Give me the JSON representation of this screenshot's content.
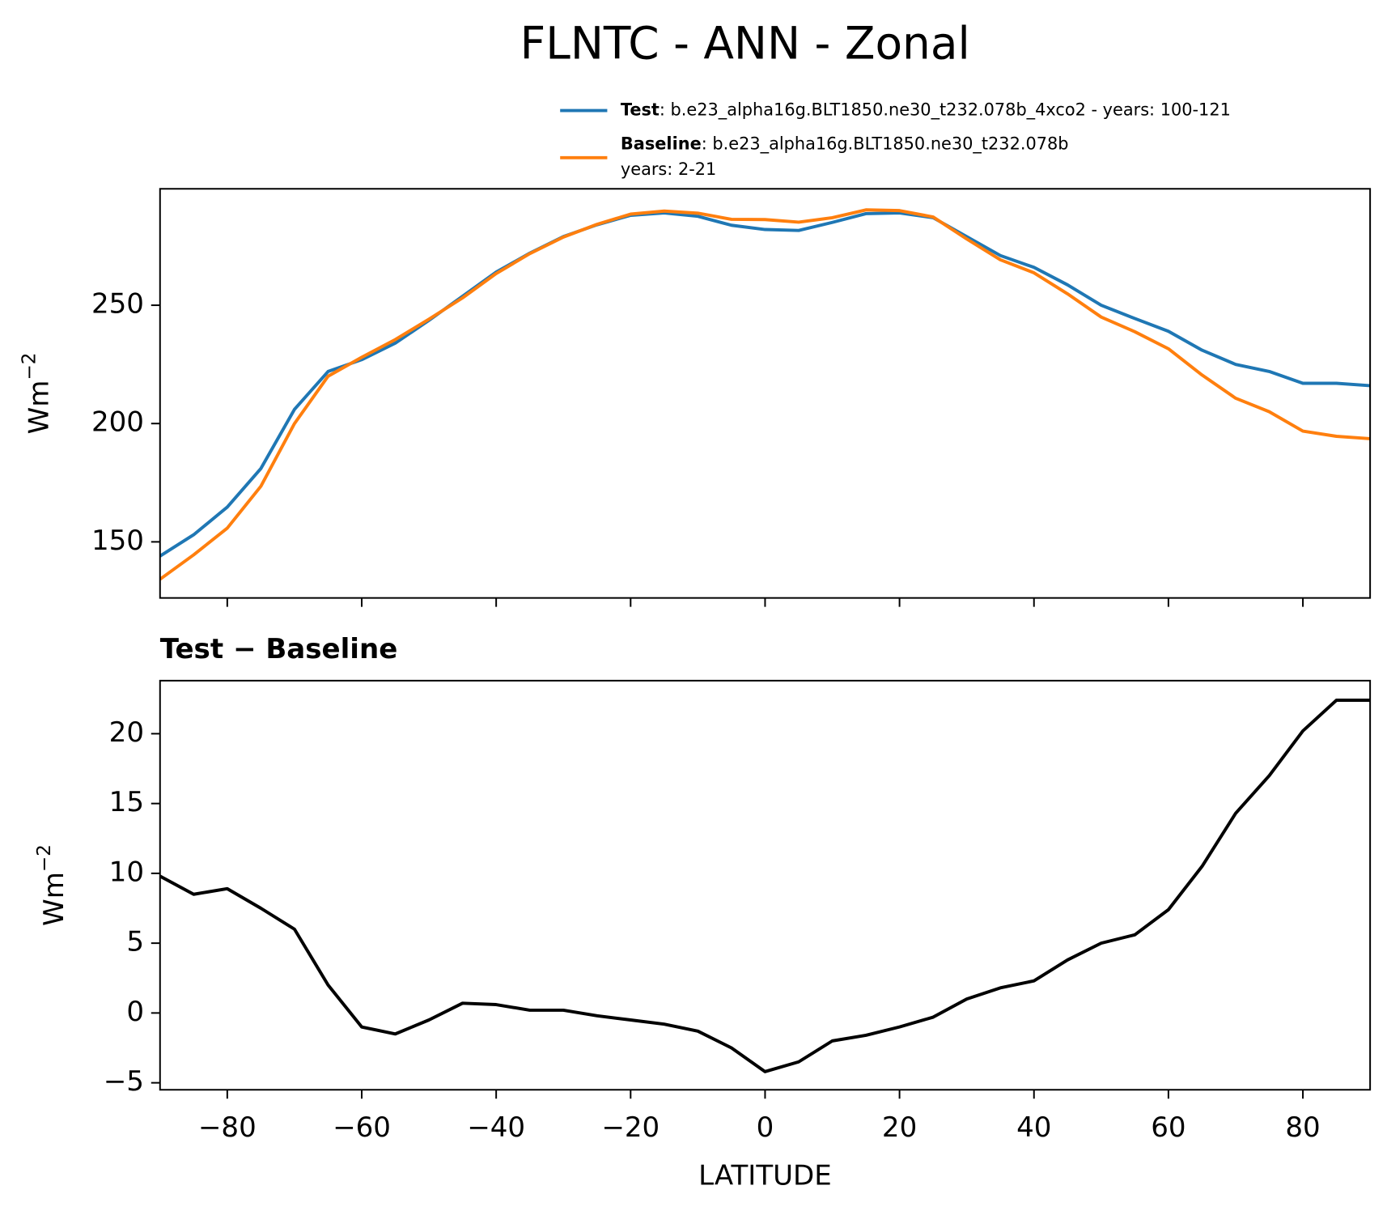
{
  "figure_title": "FLNTC - ANN - Zonal",
  "chart_data": [
    {
      "type": "line",
      "ylabel": "Wm",
      "ylabel_exponent": "−2",
      "x": [
        -90,
        -85,
        -80,
        -75,
        -70,
        -65,
        -60,
        -55,
        -50,
        -45,
        -40,
        -35,
        -30,
        -25,
        -20,
        -15,
        -10,
        -5,
        0,
        5,
        10,
        15,
        20,
        25,
        30,
        35,
        40,
        45,
        50,
        55,
        60,
        65,
        70,
        75,
        80,
        85,
        90
      ],
      "series": [
        {
          "name": "Test",
          "description": [
            ": b.e23_alpha16g.BLT1850.ne30_t232.078b_4xco2 - years: 100-121"
          ],
          "color": "#1f77b4",
          "values": [
            144,
            153,
            164.7,
            181,
            206,
            222,
            227,
            234,
            243.6,
            253.8,
            264,
            272,
            279,
            284,
            288,
            289,
            287.6,
            283.8,
            282,
            281.6,
            285,
            288.7,
            289,
            287,
            279,
            271,
            266,
            258.6,
            250,
            244.4,
            239,
            231,
            225,
            222,
            217,
            217,
            216
          ]
        },
        {
          "name": "Baseline",
          "description": [
            ": b.e23_alpha16g.BLT1850.ne30_t232.078b",
            "years: 2-21"
          ],
          "color": "#ff7f0e",
          "values": [
            134.2,
            144.5,
            155.8,
            173.5,
            200,
            220,
            228,
            235.5,
            244.1,
            253.1,
            263.4,
            271.8,
            278.8,
            284.2,
            288.5,
            289.8,
            288.9,
            286.3,
            286.2,
            285.1,
            287,
            290.3,
            290,
            287.3,
            278,
            269.2,
            263.7,
            254.8,
            245,
            238.8,
            231.6,
            220.5,
            210.7,
            205,
            196.8,
            194.6,
            193.6
          ]
        }
      ],
      "xlim": [
        -90,
        90
      ],
      "xticks": [
        -80,
        -60,
        -40,
        -20,
        0,
        20,
        40,
        60,
        80
      ],
      "ylim": [
        126.3,
        299.2
      ],
      "yticks": [
        150,
        200,
        250
      ]
    },
    {
      "type": "line",
      "title": "Test − Baseline",
      "xlabel": "LATITUDE",
      "ylabel": "Wm",
      "ylabel_exponent": "−2",
      "x": [
        -90,
        -85,
        -80,
        -75,
        -70,
        -65,
        -60,
        -55,
        -50,
        -45,
        -40,
        -35,
        -30,
        -25,
        -20,
        -15,
        -10,
        -5,
        0,
        5,
        10,
        15,
        20,
        25,
        30,
        35,
        40,
        45,
        50,
        55,
        60,
        65,
        70,
        75,
        80,
        85,
        90
      ],
      "series": [
        {
          "color": "#000000",
          "values": [
            9.8,
            8.5,
            8.9,
            7.5,
            6,
            2,
            -1,
            -1.5,
            -0.5,
            0.7,
            0.6,
            0.2,
            0.2,
            -0.2,
            -0.5,
            -0.8,
            -1.3,
            -2.5,
            -4.2,
            -3.5,
            -2,
            -1.6,
            -1,
            -0.3,
            1,
            1.8,
            2.3,
            3.8,
            5,
            5.6,
            7.4,
            10.5,
            14.3,
            17,
            20.2,
            22.4,
            22.4
          ]
        }
      ],
      "xlim": [
        -90,
        90
      ],
      "xticks": [
        {
          "value": -80,
          "label": "−80"
        },
        {
          "value": -60,
          "label": "−60"
        },
        {
          "value": -40,
          "label": "−40"
        },
        {
          "value": -20,
          "label": "−20"
        },
        0,
        20,
        40,
        60,
        80
      ],
      "ylim": [
        -5.5,
        23.8
      ],
      "yticks": [
        {
          "value": -5,
          "label": "−5"
        },
        0,
        5,
        10,
        15,
        20
      ]
    }
  ]
}
